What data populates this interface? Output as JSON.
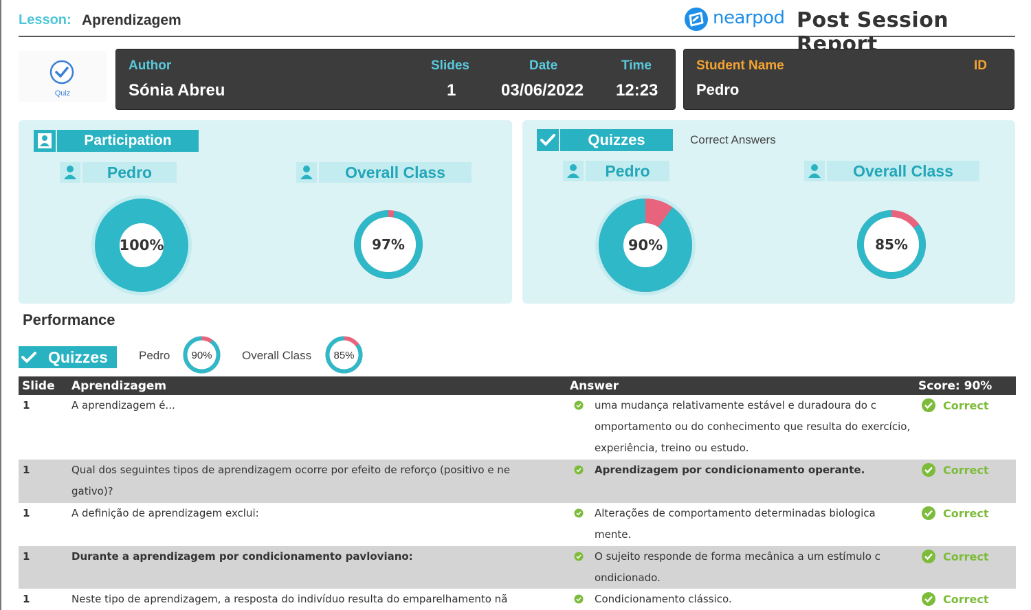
{
  "header": {
    "lesson_label": "Lesson:",
    "lesson_name": "Aprendizagem",
    "brand": "nearpod",
    "report_title": "Post Session  Report"
  },
  "quiz_badge": {
    "label": "Quiz",
    "icon": "check-circle-icon"
  },
  "info": {
    "author_label": "Author",
    "author": "Sónia  Abreu",
    "slides_label": "Slides",
    "slides": "1",
    "date_label": "Date",
    "date": "03/06/2022",
    "time_label": "Time",
    "time": "12:23",
    "student_label": "Student Name",
    "student": "Pedro",
    "id_label": "ID"
  },
  "participation": {
    "title": "Participation",
    "student_label": "Pedro",
    "class_label": "Overall Class",
    "student_value": 100,
    "student_text": "100%",
    "class_value": 97,
    "class_text": "97%"
  },
  "quizzes": {
    "title": "Quizzes",
    "subtitle": "Correct Answers",
    "student_label": "Pedro",
    "class_label": "Overall Class",
    "student_value": 90,
    "student_text": "90%",
    "class_value": 85,
    "class_text": "85%"
  },
  "performance": {
    "title": "Performance",
    "quizzes_label": "Quizzes",
    "student_label": "Pedro",
    "student_text": "90%",
    "student_value": 90,
    "class_label": "Overall Class",
    "class_text": "85%",
    "class_value": 85
  },
  "table": {
    "headers": {
      "slide": "Slide",
      "question": "Aprendizagem",
      "answer": "Answer",
      "score": "Score: 90%"
    },
    "rows": [
      {
        "slide": "1",
        "question": [
          "A aprendizagem é..."
        ],
        "answer": [
          "uma mudança relativamente estável e duradoura do c",
          "omportamento ou do conhecimento que resulta do exercício,",
          "experiência, treino ou estudo."
        ],
        "result": "Correct"
      },
      {
        "slide": "1",
        "question": [
          "Qual dos seguintes tipos de aprendizagem ocorre por efeito de reforço (positivo e ne",
          "gativo)?"
        ],
        "answer": [
          "Aprendizagem por condicionamento operante."
        ],
        "result": "Correct"
      },
      {
        "slide": "1",
        "question": [
          "A definição de aprendizagem exclui:"
        ],
        "answer": [
          "Alterações de comportamento determinadas biologica",
          "mente."
        ],
        "result": "Correct"
      },
      {
        "slide": "1",
        "question": [
          "Durante a aprendizagem por condicionamento pavloviano:"
        ],
        "answer": [
          "O sujeito responde de forma mecânica a um estímulo c",
          "ondicionado."
        ],
        "result": "Correct"
      },
      {
        "slide": "1",
        "question": [
          "Neste tipo de aprendizagem, a resposta do indivíduo resulta do emparelhamento nã"
        ],
        "answer": [
          "Condicionamento clássico."
        ],
        "result": "Correct"
      }
    ]
  },
  "colors": {
    "teal": "#2fb8c8",
    "pink": "#e8637c",
    "panel": "#dcf3f5",
    "dark": "#3c3c3c",
    "green": "#7cbc3a",
    "orange": "#f5a431"
  }
}
